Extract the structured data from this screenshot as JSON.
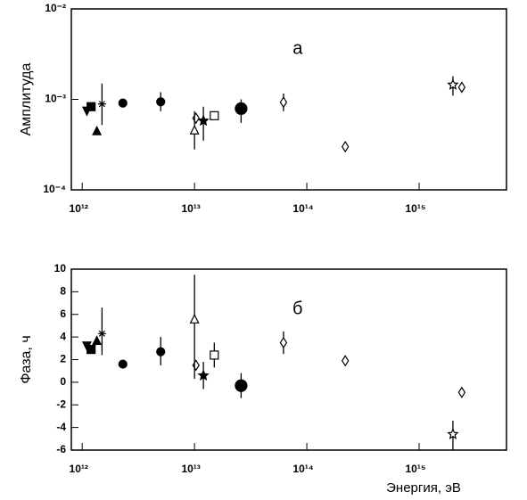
{
  "chart_data": [
    {
      "type": "scatter",
      "y_label": "Амплитуда",
      "annotation": "а",
      "xscale": "log",
      "yscale": "log",
      "xlim": [
        800000000000.0,
        6000000000000000.0
      ],
      "ylim": [
        0.0001,
        0.01
      ],
      "xticks": [
        {
          "value": 1000000000000.0,
          "label": "10¹²"
        },
        {
          "value": 10000000000000.0,
          "label": "10¹³"
        },
        {
          "value": 100000000000000.0,
          "label": "10¹⁴"
        },
        {
          "value": 1000000000000000.0,
          "label": "10¹⁵"
        }
      ],
      "yticks": [
        {
          "value": 0.0001,
          "label": "10⁻⁴"
        },
        {
          "value": 0.001,
          "label": "10⁻³"
        },
        {
          "value": 0.01,
          "label": "10⁻²"
        }
      ],
      "color": "#000000",
      "x": [
        1100000000000.0,
        1200000000000.0,
        1350000000000.0,
        1500000000000.0,
        2300000000000.0,
        5000000000000.0,
        10300000000000.0,
        10000000000000.0,
        12000000000000.0,
        15000000000000.0,
        26000000000000.0,
        62000000000000.0,
        220000000000000.0,
        2000000000000000.0,
        2400000000000000.0
      ],
      "values": [
        0.00074,
        0.00083,
        0.00045,
        0.00089,
        0.00091,
        0.00094,
        0.00062,
        0.00046,
        0.00058,
        0.00066,
        0.00079,
        0.00093,
        0.0003,
        0.00145,
        0.00136
      ],
      "errors": [
        null,
        null,
        null,
        [
          0.00052,
          0.0015
        ],
        null,
        [
          0.00074,
          0.0012
        ],
        null,
        [
          0.00028,
          0.00074
        ],
        [
          0.00035,
          0.00083
        ],
        null,
        [
          0.00055,
          0.001
        ],
        [
          0.00074,
          0.00116
        ],
        null,
        [
          0.0011,
          0.0018
        ],
        null
      ],
      "markers": [
        "filled-triangle-down",
        "filled-square",
        "filled-triangle",
        "asterisk",
        "filled-circle",
        "filled-circle",
        "open-diamond",
        "open-triangle",
        "filled-star",
        "open-square",
        "large-filled-circle",
        "open-diamond",
        "open-diamond",
        "open-star",
        "open-diamond"
      ]
    },
    {
      "type": "scatter",
      "y_label": "Фаза, ч",
      "annotation": "б",
      "x_label": "Энергия,  эВ",
      "xscale": "log",
      "yscale": "linear",
      "xlim": [
        800000000000.0,
        6000000000000000.0
      ],
      "ylim": [
        -6,
        10
      ],
      "xticks": [
        {
          "value": 1000000000000.0,
          "label": "10¹²"
        },
        {
          "value": 10000000000000.0,
          "label": "10¹³"
        },
        {
          "value": 100000000000000.0,
          "label": "10¹⁴"
        },
        {
          "value": 1000000000000000.0,
          "label": "10¹⁵"
        }
      ],
      "yticks": [
        -6,
        -4,
        -2,
        0,
        2,
        4,
        6,
        8,
        10
      ],
      "color": "#000000",
      "x": [
        1100000000000.0,
        1200000000000.0,
        1350000000000.0,
        1500000000000.0,
        2300000000000.0,
        5000000000000.0,
        10300000000000.0,
        10000000000000.0,
        12000000000000.0,
        15000000000000.0,
        26000000000000.0,
        62000000000000.0,
        220000000000000.0,
        2000000000000000.0,
        2400000000000000.0
      ],
      "values": [
        3.2,
        2.9,
        3.7,
        4.3,
        1.6,
        2.7,
        1.5,
        5.6,
        0.6,
        2.4,
        -0.3,
        3.5,
        1.9,
        -4.6,
        -0.9
      ],
      "errors": [
        null,
        null,
        null,
        [
          2.4,
          6.6
        ],
        null,
        [
          1.5,
          4
        ],
        null,
        [
          0.3,
          9.5
        ],
        [
          -0.6,
          1.8
        ],
        [
          1.3,
          3.5
        ],
        [
          -1.4,
          0.8
        ],
        [
          2.5,
          4.5
        ],
        null,
        [
          -6,
          -3.4
        ],
        null
      ],
      "markers": [
        "filled-triangle-down",
        "filled-square",
        "filled-triangle",
        "asterisk",
        "filled-circle",
        "filled-circle",
        "open-diamond",
        "open-triangle",
        "filled-star",
        "open-square",
        "large-filled-circle",
        "open-diamond",
        "open-diamond",
        "open-star",
        "open-diamond"
      ]
    }
  ]
}
